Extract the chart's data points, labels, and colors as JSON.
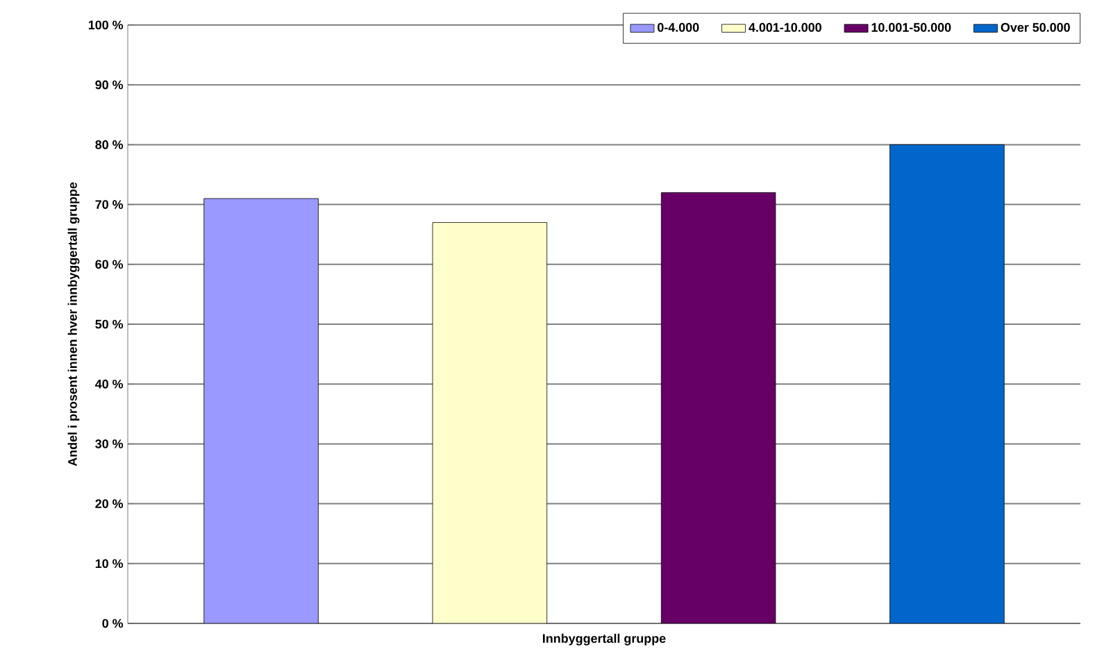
{
  "chart_data": {
    "type": "bar",
    "xlabel": "Innbyggertall gruppe",
    "ylabel": "Andel i prosent innen hver innbyggertall gruppe",
    "categories": [
      null
    ],
    "series": [
      {
        "name": "0-4.000",
        "color": "#9999ff",
        "values": [
          71
        ]
      },
      {
        "name": "4.001-10.000",
        "color": "#ffffcc",
        "values": [
          67
        ]
      },
      {
        "name": "10.001-50.000",
        "color": "#660066",
        "values": [
          72
        ]
      },
      {
        "name": "Over 50.000",
        "color": "#0066cc",
        "values": [
          80
        ]
      }
    ],
    "ylim": [
      0,
      100
    ],
    "yticks": [
      {
        "value": 0,
        "label": "0 %"
      },
      {
        "value": 10,
        "label": "10 %"
      },
      {
        "value": 20,
        "label": "20 %"
      },
      {
        "value": 30,
        "label": "30 %"
      },
      {
        "value": 40,
        "label": "40 %"
      },
      {
        "value": 50,
        "label": "50 %"
      },
      {
        "value": 60,
        "label": "60 %"
      },
      {
        "value": 70,
        "label": "70 %"
      },
      {
        "value": 80,
        "label": "80 %"
      },
      {
        "value": 90,
        "label": "90 %"
      },
      {
        "value": 100,
        "label": "100 %"
      }
    ],
    "grid": "y",
    "legend": "top right"
  }
}
